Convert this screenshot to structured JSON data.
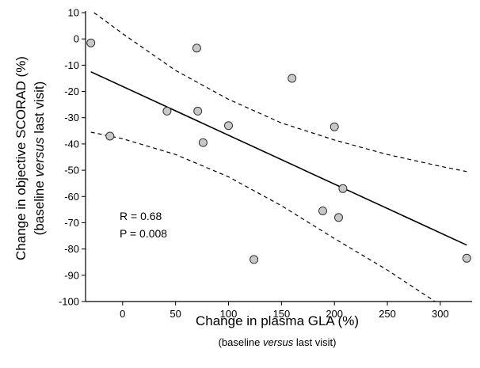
{
  "chart_data": {
    "type": "scatter",
    "title": "",
    "xlabel": "Change in plasma GLA (%)",
    "xlabel_sub": {
      "before": "(baseline ",
      "italic": "versus",
      "after": " last visit)"
    },
    "ylabel": "Change in objective SCORAD (%)",
    "ylabel_sub": {
      "before": "(baseline ",
      "italic": "versus",
      "after": " last visit)"
    },
    "xlim": [
      -35,
      330
    ],
    "ylim": [
      -100,
      10
    ],
    "xticks": [
      0,
      50,
      100,
      150,
      200,
      250,
      300
    ],
    "yticks": [
      10,
      0,
      -10,
      -20,
      -30,
      -40,
      -50,
      -60,
      -70,
      -80,
      -90,
      -100
    ],
    "grid": false,
    "points": [
      {
        "x": -30,
        "y": -1.5
      },
      {
        "x": -12,
        "y": -37
      },
      {
        "x": 42,
        "y": -27.5
      },
      {
        "x": 70,
        "y": -3.5
      },
      {
        "x": 71,
        "y": -27.5
      },
      {
        "x": 76,
        "y": -39.5
      },
      {
        "x": 100,
        "y": -33
      },
      {
        "x": 124,
        "y": -84
      },
      {
        "x": 160,
        "y": -15
      },
      {
        "x": 189,
        "y": -65.5
      },
      {
        "x": 200,
        "y": -33.5
      },
      {
        "x": 204,
        "y": -68
      },
      {
        "x": 208,
        "y": -57
      },
      {
        "x": 325,
        "y": -83.5
      }
    ],
    "regression_line": {
      "x": [
        -30,
        325
      ],
      "y": [
        -12.5,
        -78.5
      ]
    },
    "confidence_upper": {
      "x": [
        -27,
        0,
        50,
        100,
        150,
        200,
        250,
        300,
        325
      ],
      "y": [
        10,
        2,
        -12,
        -23,
        -32,
        -38.5,
        -44,
        -48.5,
        -50.5
      ]
    },
    "confidence_lower": {
      "x": [
        -30,
        0,
        50,
        100,
        150,
        200,
        250,
        295
      ],
      "y": [
        -35.5,
        -38,
        -44,
        -52.5,
        -63.5,
        -76,
        -88,
        -100
      ]
    },
    "annotations": [
      "R = 0.68",
      "P = 0.008"
    ],
    "colors": {
      "marker_fill": "#c8c8c8",
      "marker_stroke": "#333333",
      "line": "#000000"
    }
  }
}
